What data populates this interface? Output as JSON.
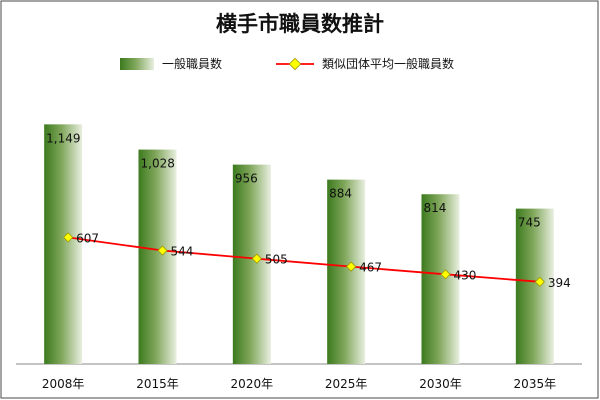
{
  "chart_data": {
    "type": "bar",
    "title": "横手市職員数推計",
    "categories": [
      "2008年",
      "2015年",
      "2020年",
      "2025年",
      "2030年",
      "2035年"
    ],
    "series": [
      {
        "name": "一般職員数",
        "type": "bar",
        "values": [
          1149,
          1028,
          956,
          884,
          814,
          745
        ],
        "labels": [
          "1,149",
          "1,028",
          "956",
          "884",
          "814",
          "745"
        ],
        "color": "#3f7f1f"
      },
      {
        "name": "類似団体平均一般職員数",
        "type": "line",
        "values": [
          607,
          544,
          505,
          467,
          430,
          394
        ],
        "labels": [
          "607",
          "544",
          "505",
          "467",
          "430",
          "394"
        ],
        "color": "#ff0000",
        "marker_color": "#ffff00"
      }
    ],
    "ylim": [
      0,
      1400
    ],
    "grid": false,
    "legend_position": "top-center"
  }
}
